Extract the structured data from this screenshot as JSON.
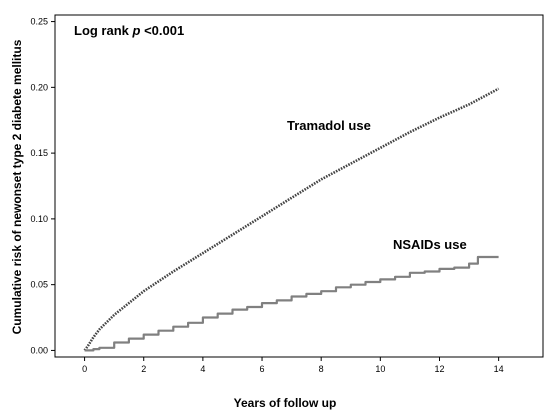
{
  "chart_data": {
    "type": "line",
    "title": "",
    "xlabel": "Years of follow up",
    "ylabel": "Cumulative risk of newonset type 2 diabete mellitus",
    "xlim": [
      -1,
      15.5
    ],
    "ylim": [
      -0.005,
      0.255
    ],
    "x_ticks": [
      0,
      2,
      4,
      6,
      8,
      10,
      12,
      14
    ],
    "x_tick_labels": [
      "0",
      "2",
      "4",
      "6",
      "8",
      "10",
      "12",
      "14"
    ],
    "y_ticks": [
      0.0,
      0.05,
      0.1,
      0.15,
      0.2,
      0.25
    ],
    "y_tick_labels": [
      "0.00",
      "0.05",
      "0.10",
      "0.15",
      "0.20",
      "0.25"
    ],
    "grid": false,
    "annotation": {
      "prefix": "Log rank ",
      "italic": "p",
      "suffix": " <0.001"
    },
    "series": [
      {
        "name": "Tramadol use",
        "color": "#444444",
        "style": "dotted",
        "x": [
          0,
          0.1,
          0.3,
          0.5,
          1,
          1.5,
          2,
          3,
          4,
          5,
          6,
          7,
          8,
          9,
          10,
          11,
          12,
          13,
          14
        ],
        "y": [
          0,
          0.003,
          0.01,
          0.016,
          0.027,
          0.036,
          0.045,
          0.06,
          0.074,
          0.088,
          0.102,
          0.116,
          0.13,
          0.142,
          0.154,
          0.166,
          0.177,
          0.187,
          0.199
        ]
      },
      {
        "name": "NSAIDs use",
        "color": "#808080",
        "style": "step",
        "x": [
          0,
          0.3,
          0.5,
          1,
          1.5,
          2,
          2.5,
          3,
          3.5,
          4,
          4.5,
          5,
          5.5,
          6,
          6.5,
          7,
          7.5,
          8,
          8.5,
          9,
          9.5,
          10,
          10.5,
          11,
          11.5,
          12,
          12.5,
          13,
          13.3,
          13.5,
          14
        ],
        "y": [
          0,
          0.001,
          0.002,
          0.006,
          0.009,
          0.012,
          0.015,
          0.018,
          0.021,
          0.025,
          0.028,
          0.031,
          0.033,
          0.036,
          0.038,
          0.041,
          0.043,
          0.045,
          0.048,
          0.05,
          0.052,
          0.054,
          0.056,
          0.059,
          0.06,
          0.062,
          0.063,
          0.066,
          0.071,
          0.071,
          0.071
        ]
      }
    ]
  }
}
